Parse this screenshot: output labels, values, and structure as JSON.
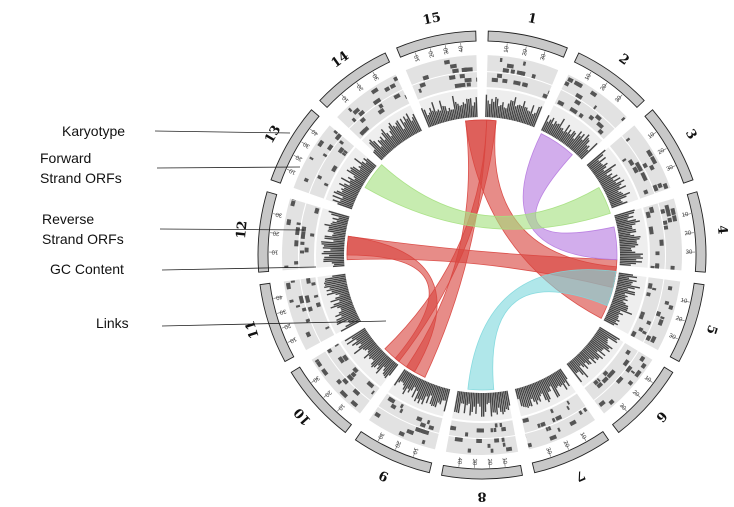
{
  "diagram": {
    "labels": {
      "karyotype": [
        "Karyotype"
      ],
      "forward": [
        "Forward",
        "Strand ORFs"
      ],
      "reverse": [
        "Reverse",
        "Strand ORFs"
      ],
      "gc": [
        "GC Content"
      ],
      "links": [
        "Links"
      ]
    },
    "segments": [
      {
        "id": "1",
        "ticks": [
          "10",
          "20",
          "30"
        ]
      },
      {
        "id": "2",
        "ticks": [
          "10",
          "20",
          "30"
        ]
      },
      {
        "id": "3",
        "ticks": [
          "10",
          "20",
          "30"
        ]
      },
      {
        "id": "4",
        "ticks": [
          "10",
          "20",
          "30"
        ]
      },
      {
        "id": "5",
        "ticks": [
          "10",
          "20",
          "30"
        ]
      },
      {
        "id": "6",
        "ticks": [
          "10",
          "20",
          "30"
        ]
      },
      {
        "id": "7",
        "ticks": [
          "10",
          "20",
          "30"
        ]
      },
      {
        "id": "8",
        "ticks": [
          "10",
          "20",
          "30",
          "40"
        ]
      },
      {
        "id": "9",
        "ticks": [
          "10",
          "20",
          "30"
        ]
      },
      {
        "id": "10",
        "ticks": [
          "10",
          "20",
          "30"
        ]
      },
      {
        "id": "11",
        "ticks": [
          "10",
          "20",
          "30",
          "40"
        ]
      },
      {
        "id": "12",
        "ticks": [
          "10",
          "20",
          "30"
        ]
      },
      {
        "id": "13",
        "ticks": [
          "10",
          "20",
          "30",
          "40"
        ]
      },
      {
        "id": "14",
        "ticks": [
          "10",
          "20",
          "30"
        ]
      },
      {
        "id": "15",
        "ticks": [
          "10",
          "20",
          "30",
          "40"
        ]
      }
    ],
    "link_colors": {
      "red": "#d9453f",
      "purple": "#b77be0",
      "green": "#a5e07f",
      "cyan": "#7fd8dd"
    },
    "track_colors": {
      "karyotype": "#c8c8c8",
      "orf_track": "#e2e2e2",
      "orf_mark": "#555555",
      "gc_track": "#eeeeee",
      "gc_bar": "#444444"
    }
  }
}
